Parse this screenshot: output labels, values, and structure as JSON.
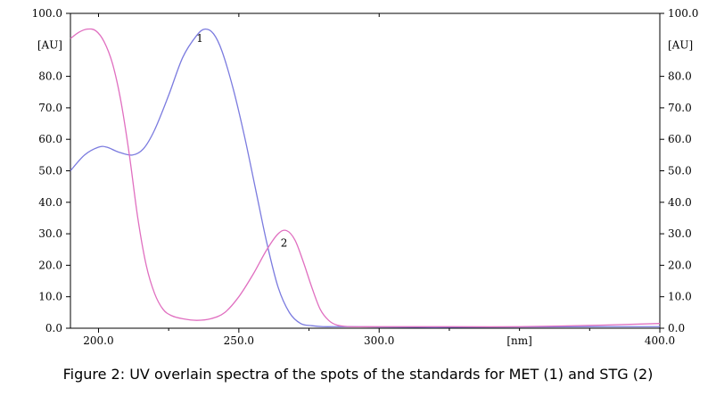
{
  "caption": "Figure 2: UV overlain spectra of the spots of the standards for MET (1) and STG (2)",
  "chart_data": {
    "type": "line",
    "title": "",
    "xlabel": "[nm]",
    "ylabel_left": "[AU]",
    "ylabel_right": "[AU]",
    "xlim": [
      190,
      400
    ],
    "ylim": [
      0,
      100
    ],
    "x_ticks": [
      200,
      250,
      300,
      400
    ],
    "x_tick_labels": [
      "200.0",
      "250.0",
      "300.0",
      "400.0"
    ],
    "y_ticks": [
      0,
      10,
      20,
      30,
      40,
      50,
      60,
      70,
      80,
      100
    ],
    "y_tick_labels": [
      "0.0",
      "10.0",
      "20.0",
      "30.0",
      "40.0",
      "50.0",
      "60.0",
      "70.0",
      "80.0",
      "100.0"
    ],
    "grid": false,
    "series": [
      {
        "name": "1",
        "color": "#7b7bdf",
        "x": [
          190,
          195,
          200,
          203,
          207,
          212,
          216,
          220,
          225,
          230,
          235,
          238,
          241,
          244,
          248,
          252,
          256,
          260,
          264,
          268,
          272,
          276,
          280,
          285,
          290,
          300,
          320,
          350,
          380,
          400
        ],
        "y": [
          50,
          55,
          57.5,
          57.5,
          56,
          55,
          57,
          63,
          74,
          86,
          93,
          95,
          93.5,
          88,
          76,
          61,
          44,
          27,
          13,
          5,
          1.5,
          0.8,
          0.5,
          0.5,
          0.5,
          0.4,
          0.3,
          0.4,
          0.5,
          0.5
        ]
      },
      {
        "name": "2",
        "color": "#e06fc0",
        "x": [
          190,
          193,
          196,
          199,
          202,
          205,
          208,
          211,
          214,
          217,
          220,
          223,
          226,
          230,
          235,
          240,
          245,
          250,
          255,
          260,
          264,
          267,
          270,
          273,
          276,
          279,
          282,
          285,
          290,
          300,
          320,
          350,
          380,
          400
        ],
        "y": [
          92,
          94,
          95,
          94.5,
          91,
          84,
          72,
          55,
          35,
          20,
          11,
          6,
          4,
          3,
          2.5,
          3,
          5,
          10,
          17,
          25,
          30,
          31,
          28,
          21,
          13,
          6,
          2.5,
          1,
          0.5,
          0.5,
          0.5,
          0.5,
          1,
          1.5
        ]
      }
    ],
    "series_labels": [
      {
        "text": "1",
        "x": 238,
        "y": 92
      },
      {
        "text": "2",
        "x": 268,
        "y": 27
      }
    ]
  }
}
